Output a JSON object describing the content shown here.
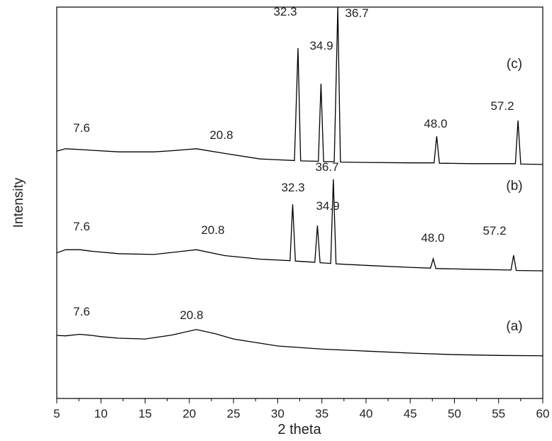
{
  "chart_data": {
    "type": "line",
    "xlabel": "2 theta",
    "ylabel": "Intensity",
    "xlim": [
      5,
      60
    ],
    "xticks": [
      5,
      10,
      15,
      20,
      25,
      30,
      35,
      40,
      45,
      50,
      55,
      60
    ],
    "ylim": [
      0,
      100
    ],
    "series": [
      {
        "name": "(a)",
        "color": "#000000",
        "x": [
          5,
          6,
          7.6,
          9,
          10,
          12,
          15,
          18,
          20.8,
          23,
          25,
          30,
          35,
          40,
          45,
          50,
          55,
          60
        ],
        "values": [
          16.1,
          16.0,
          16.4,
          16.1,
          15.8,
          15.4,
          15.2,
          16.2,
          17.6,
          16.5,
          15.2,
          13.4,
          12.6,
          12.1,
          11.6,
          11.2,
          11.0,
          10.9
        ],
        "peak_labels": [
          "7.6",
          "20.8"
        ]
      },
      {
        "name": "(b)",
        "color": "#000000",
        "x": [
          5,
          6,
          7.6,
          9,
          12,
          16,
          18,
          20.8,
          24,
          28,
          31.4,
          31.7,
          32.0,
          34.2,
          34.5,
          34.8,
          36.0,
          36.3,
          36.6,
          40,
          45,
          47.3,
          47.6,
          47.9,
          52,
          56.4,
          56.7,
          57.0,
          60
        ],
        "values": [
          37.2,
          38.0,
          38.0,
          37.6,
          37.0,
          36.8,
          37.3,
          38.0,
          36.5,
          35.6,
          35.2,
          49.6,
          35.1,
          34.8,
          44.2,
          34.7,
          34.5,
          56.0,
          34.4,
          34.0,
          33.5,
          33.3,
          35.7,
          33.2,
          33.0,
          32.8,
          36.6,
          32.7,
          32.6
        ],
        "peak_labels": [
          "7.6",
          "20.8",
          "32.3",
          "34.9",
          "36.7",
          "48.0",
          "57.2"
        ]
      },
      {
        "name": "(c)",
        "color": "#000000",
        "x": [
          5,
          6,
          7.6,
          9,
          12,
          16,
          18,
          20.8,
          24,
          28,
          31.9,
          32.3,
          32.6,
          34.6,
          34.9,
          35.2,
          36.4,
          36.8,
          37.1,
          40,
          45,
          47.7,
          48.0,
          48.3,
          52,
          56.9,
          57.2,
          57.5,
          60
        ],
        "values": [
          63.2,
          63.8,
          63.6,
          63.4,
          63.0,
          63.0,
          63.3,
          63.8,
          62.6,
          61.2,
          60.8,
          89.5,
          60.7,
          60.6,
          80.4,
          60.5,
          60.5,
          100,
          60.4,
          60.3,
          60.2,
          60.2,
          67.0,
          60.1,
          60.0,
          60.0,
          71.0,
          59.9,
          59.8
        ],
        "peak_labels": [
          "7.6",
          "20.8",
          "32.3",
          "34.9",
          "36.7",
          "48.0",
          "57.2"
        ]
      }
    ]
  }
}
